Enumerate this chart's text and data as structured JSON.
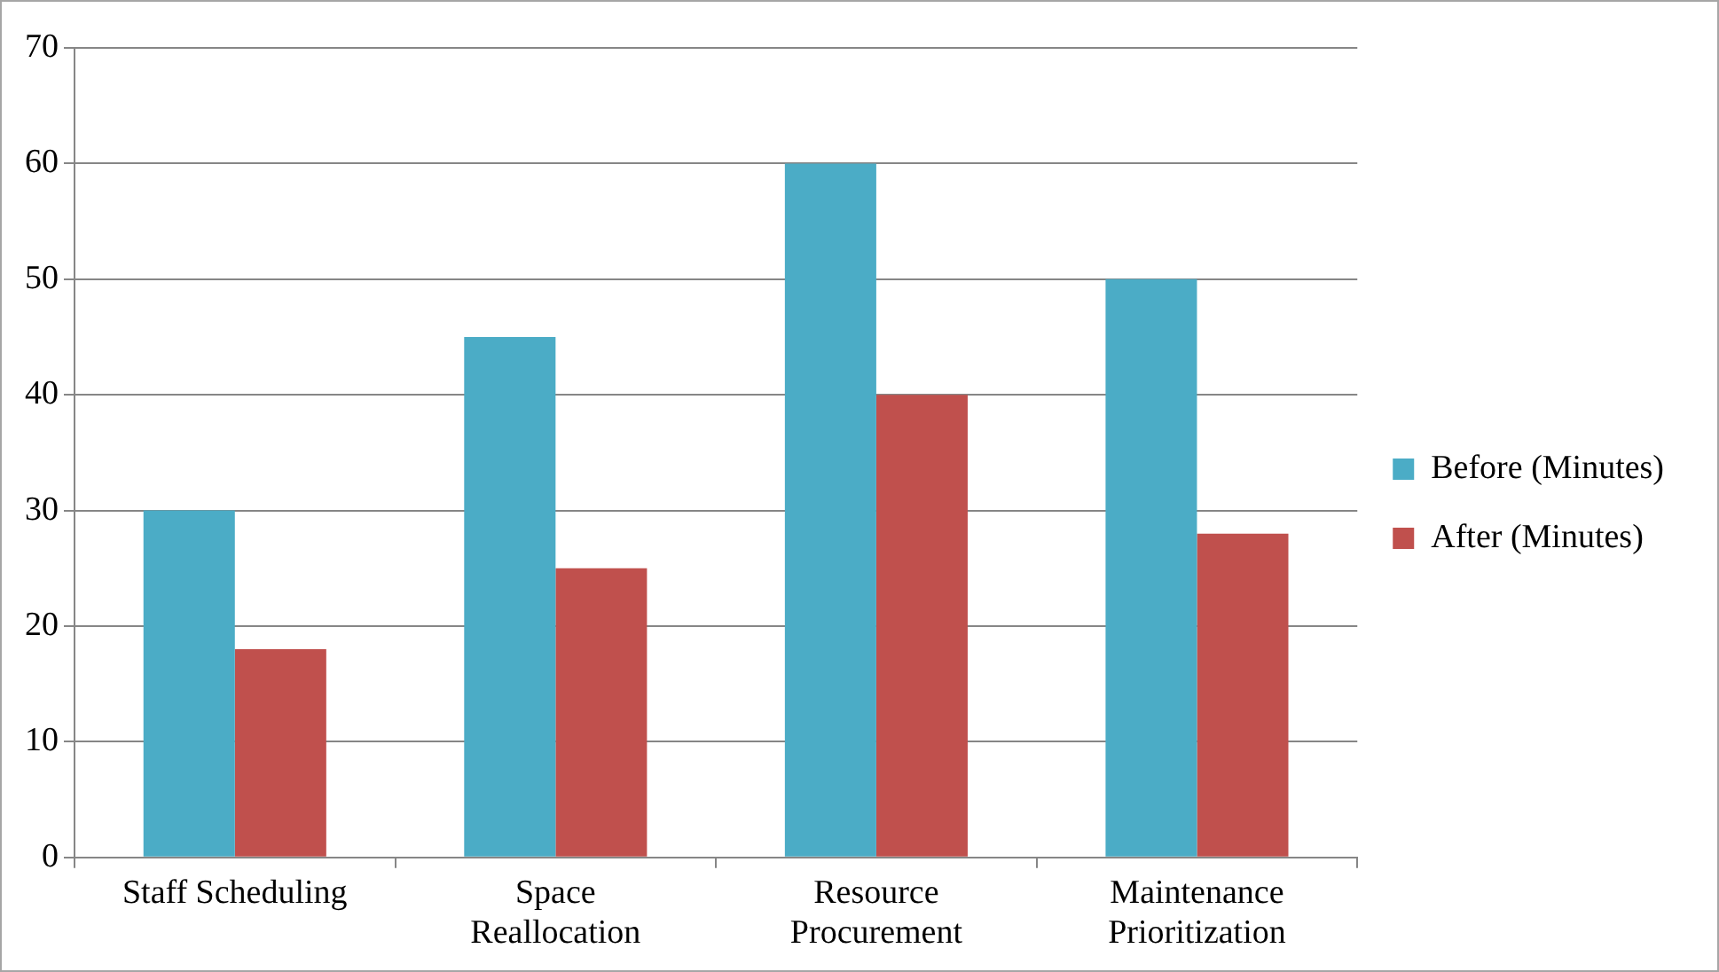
{
  "chart_data": {
    "type": "bar",
    "categories": [
      "Staff Scheduling",
      "Space Reallocation",
      "Resource Procurement",
      "Maintenance Prioritization"
    ],
    "series": [
      {
        "name": "Before (Minutes)",
        "color": "#4bacc6",
        "values": [
          30,
          45,
          60,
          50
        ]
      },
      {
        "name": "After (Minutes)",
        "color": "#c0504d",
        "values": [
          18,
          25,
          40,
          28
        ]
      }
    ],
    "ylim": [
      0,
      70
    ],
    "yticks": [
      0,
      10,
      20,
      30,
      40,
      50,
      60,
      70
    ],
    "grid": "y",
    "legend": "right"
  }
}
